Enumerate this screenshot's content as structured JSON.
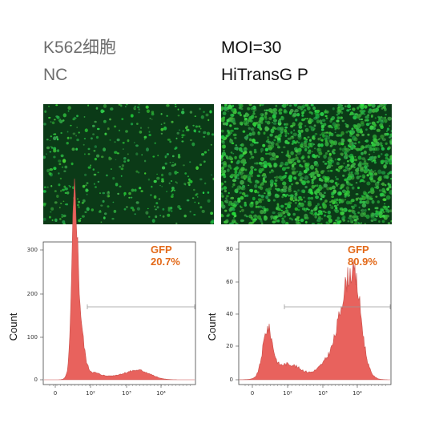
{
  "left_panel": {
    "title": "K562细胞",
    "subtitle": "NC",
    "histogram": {
      "gate_label": "GFP",
      "gate_value": "20.7%",
      "y_axis_label": "Count",
      "y_ticks": [
        "0",
        "100",
        "200",
        "300"
      ],
      "x_ticks": [
        "0",
        "10²",
        "10³",
        "10⁴"
      ]
    }
  },
  "right_panel": {
    "title": "MOI=30",
    "subtitle": "HiTransG P",
    "histogram": {
      "gate_label": "GFP",
      "gate_value": "80.9%",
      "y_axis_label": "Count",
      "y_ticks": [
        "0",
        "20",
        "40",
        "60",
        "80"
      ],
      "x_ticks": [
        "0",
        "10²",
        "10³",
        "10⁴"
      ]
    }
  },
  "colors": {
    "histogram_fill": "#e8625d",
    "gate_text": "#e36a1a",
    "micrograph_background": "#0b3a17",
    "cell_green": "#2fbf4d"
  },
  "icons": [
    "fluorescence-micrograph"
  ]
}
